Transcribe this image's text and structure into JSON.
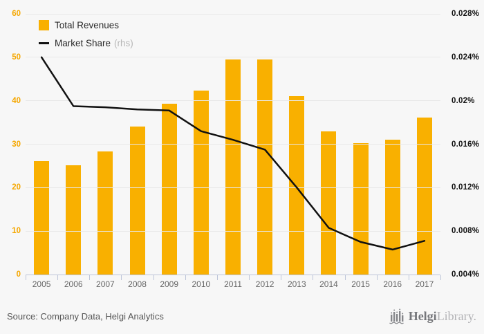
{
  "colors": {
    "background": "#f7f7f7",
    "bar": "#f9b000",
    "line": "#111111",
    "left_axis_text": "#f5a700",
    "right_axis_text": "#141414",
    "grid": "#e8e8e8",
    "axis": "#bdc5d9"
  },
  "legend": {
    "items": [
      {
        "label": "Total Revenues",
        "swatch": "bar-swatch"
      },
      {
        "label": "Market Share",
        "suffix": "(rhs)",
        "swatch": "line-swatch"
      }
    ]
  },
  "footer": {
    "source": "Source: Company Data, Helgi Analytics",
    "logo": {
      "bold": "Helgi",
      "light": "Library."
    }
  },
  "chart_data": {
    "type": "bar+line",
    "title": "",
    "categories": [
      "2005",
      "2006",
      "2007",
      "2008",
      "2009",
      "2010",
      "2011",
      "2012",
      "2013",
      "2014",
      "2015",
      "2016",
      "2017"
    ],
    "series": [
      {
        "name": "Total Revenues",
        "type": "bar",
        "axis": "left",
        "values": [
          26.1,
          25.1,
          28.3,
          34.1,
          39.3,
          42.3,
          49.5,
          49.5,
          41.1,
          32.9,
          30.2,
          31.0,
          36.1
        ]
      },
      {
        "name": "Market Share (rhs)",
        "type": "line",
        "axis": "right",
        "unit": "%",
        "values": [
          0.024,
          0.0195,
          0.0194,
          0.0192,
          0.0191,
          0.0172,
          0.0164,
          0.0155,
          0.012,
          0.0083,
          0.007,
          0.0063,
          0.0071
        ]
      }
    ],
    "left_axis": {
      "min": 0,
      "max": 60,
      "tick_labels": [
        "60",
        "50",
        "40",
        "30",
        "20",
        "10",
        "0"
      ]
    },
    "right_axis": {
      "min": 0.004,
      "max": 0.028,
      "tick_labels": [
        "0.028%",
        "0.024%",
        "0.02%",
        "0.016%",
        "0.012%",
        "0.008%",
        "0.004%"
      ]
    },
    "grid": true,
    "legend_position": "top-left"
  }
}
